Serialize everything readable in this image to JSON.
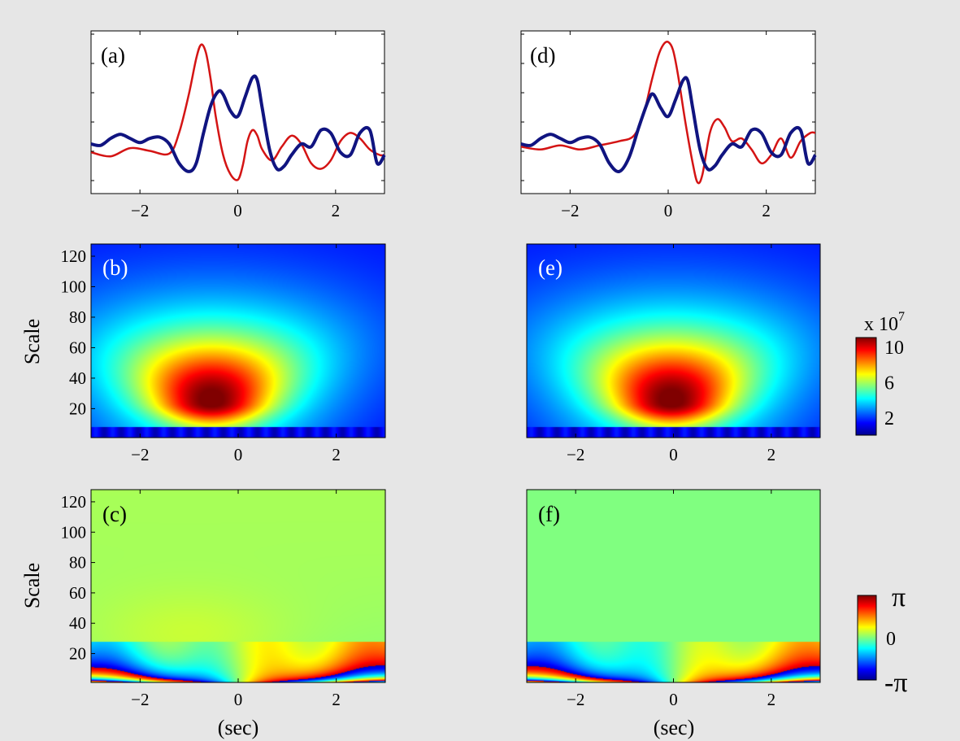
{
  "chart_data": [
    {
      "id": "a",
      "type": "line",
      "label": "(a)",
      "xlim": [
        -3,
        3
      ],
      "xticks": [
        -2,
        0,
        2
      ],
      "series": [
        {
          "color": "#d41414",
          "x": [
            -3,
            -2.6,
            -2.2,
            -1.8,
            -1.4,
            -1.2,
            -1.0,
            -0.85,
            -0.75,
            -0.65,
            -0.55,
            -0.45,
            -0.3,
            -0.15,
            0,
            0.1,
            0.2,
            0.3,
            0.4,
            0.5,
            0.7,
            0.9,
            1.1,
            1.3,
            1.5,
            1.7,
            1.9,
            2.1,
            2.3,
            2.5,
            2.7,
            2.9,
            3
          ],
          "y": [
            -0.1,
            -0.25,
            0.05,
            -0.05,
            -0.15,
            0.6,
            2.0,
            3.3,
            3.8,
            3.5,
            2.5,
            1.2,
            -0.2,
            -0.9,
            -1.1,
            -0.6,
            0.3,
            0.7,
            0.5,
            0,
            -0.4,
            0.1,
            0.5,
            0.2,
            -0.5,
            -0.7,
            -0.4,
            0.3,
            0.6,
            0.4,
            0.0,
            -0.2,
            -0.2
          ]
        },
        {
          "color": "#101480",
          "x": [
            -3,
            -2.8,
            -2.6,
            -2.4,
            -2.2,
            -2.0,
            -1.8,
            -1.6,
            -1.4,
            -1.2,
            -1.0,
            -0.85,
            -0.7,
            -0.55,
            -0.4,
            -0.3,
            -0.15,
            0,
            0.15,
            0.3,
            0.4,
            0.5,
            0.65,
            0.8,
            0.95,
            1.1,
            1.3,
            1.5,
            1.7,
            1.9,
            2.1,
            2.3,
            2.5,
            2.7,
            2.85,
            3
          ],
          "y": [
            0.2,
            0.15,
            0.4,
            0.55,
            0.4,
            0.25,
            0.4,
            0.45,
            0.2,
            -0.5,
            -0.8,
            -0.5,
            0.6,
            1.6,
            2.1,
            2.0,
            1.4,
            1.2,
            1.9,
            2.6,
            2.5,
            1.5,
            0,
            -0.7,
            -0.6,
            -0.2,
            0.2,
            0.1,
            0.7,
            0.6,
            -0.1,
            -0.2,
            0.6,
            0.7,
            -0.5,
            -0.2
          ]
        }
      ]
    },
    {
      "id": "d",
      "type": "line",
      "label": "(d)",
      "xlim": [
        -3,
        3
      ],
      "xticks": [
        -2,
        0,
        2
      ],
      "series": [
        {
          "color": "#d41414",
          "x": [
            -3,
            -2.6,
            -2.2,
            -1.8,
            -1.4,
            -1.0,
            -0.7,
            -0.5,
            -0.35,
            -0.2,
            -0.1,
            0,
            0.1,
            0.2,
            0.35,
            0.5,
            0.6,
            0.7,
            0.85,
            1.0,
            1.15,
            1.3,
            1.5,
            1.7,
            1.9,
            2.1,
            2.3,
            2.5,
            2.7,
            2.9,
            3
          ],
          "y": [
            0.1,
            0.0,
            0.15,
            0.0,
            0.15,
            0.3,
            0.5,
            1.3,
            2.4,
            3.4,
            3.8,
            3.9,
            3.6,
            2.7,
            1.0,
            -0.5,
            -1.2,
            -0.9,
            0.6,
            1.1,
            0.8,
            0.3,
            0.4,
            0.0,
            -0.5,
            -0.2,
            0.4,
            -0.3,
            0.3,
            0.6,
            0.6
          ]
        },
        {
          "color": "#101480",
          "x": [
            -3,
            -2.8,
            -2.6,
            -2.4,
            -2.2,
            -2.0,
            -1.8,
            -1.6,
            -1.4,
            -1.2,
            -1.0,
            -0.8,
            -0.6,
            -0.4,
            -0.3,
            -0.15,
            0,
            0.15,
            0.3,
            0.4,
            0.5,
            0.65,
            0.8,
            0.95,
            1.1,
            1.3,
            1.5,
            1.7,
            1.9,
            2.1,
            2.3,
            2.5,
            2.7,
            2.85,
            3
          ],
          "y": [
            0.2,
            0.15,
            0.4,
            0.55,
            0.4,
            0.25,
            0.4,
            0.45,
            0.2,
            -0.5,
            -0.8,
            -0.3,
            0.8,
            1.8,
            2.0,
            1.5,
            1.2,
            1.8,
            2.5,
            2.5,
            1.5,
            0,
            -0.7,
            -0.6,
            -0.2,
            0.2,
            0.1,
            0.7,
            0.6,
            -0.1,
            -0.2,
            0.6,
            0.7,
            -0.5,
            -0.2
          ]
        }
      ]
    },
    {
      "id": "b",
      "type": "heatmap",
      "label": "(b)",
      "xlim": [
        -3,
        3
      ],
      "ylim": [
        1,
        128
      ],
      "xticks": [
        -2,
        0,
        2
      ],
      "yticks": [
        20,
        40,
        60,
        80,
        100,
        120
      ],
      "ylabel": "Scale",
      "center_x": -0.55,
      "center_scale": 24
    },
    {
      "id": "e",
      "type": "heatmap",
      "label": "(e)",
      "xlim": [
        -3,
        3
      ],
      "ylim": [
        1,
        128
      ],
      "xticks": [
        -2,
        0,
        2
      ],
      "center_x": -0.05,
      "center_scale": 24
    },
    {
      "id": "c",
      "type": "heatmap",
      "label": "(c)",
      "xlim": [
        -3,
        3
      ],
      "ylim": [
        1,
        128
      ],
      "xticks": [
        -2,
        0,
        2
      ],
      "yticks": [
        20,
        40,
        60,
        80,
        100,
        120
      ],
      "ylabel": "Scale",
      "xlabel": "(sec)",
      "phase_offset": 0.6
    },
    {
      "id": "f",
      "type": "heatmap",
      "label": "(f)",
      "xlim": [
        -3,
        3
      ],
      "ylim": [
        1,
        128
      ],
      "xticks": [
        -2,
        0,
        2
      ],
      "xlabel": "(sec)",
      "phase_offset": 0.0
    }
  ],
  "colorbars": {
    "magnitude": {
      "exponent_label": "x 10",
      "exponent": "7",
      "ticks": [
        "10",
        "6",
        "2"
      ],
      "tick_values": [
        10,
        6,
        2
      ],
      "range": [
        0,
        11
      ]
    },
    "phase": {
      "ticks": [
        "π",
        "0",
        "-π"
      ]
    }
  }
}
